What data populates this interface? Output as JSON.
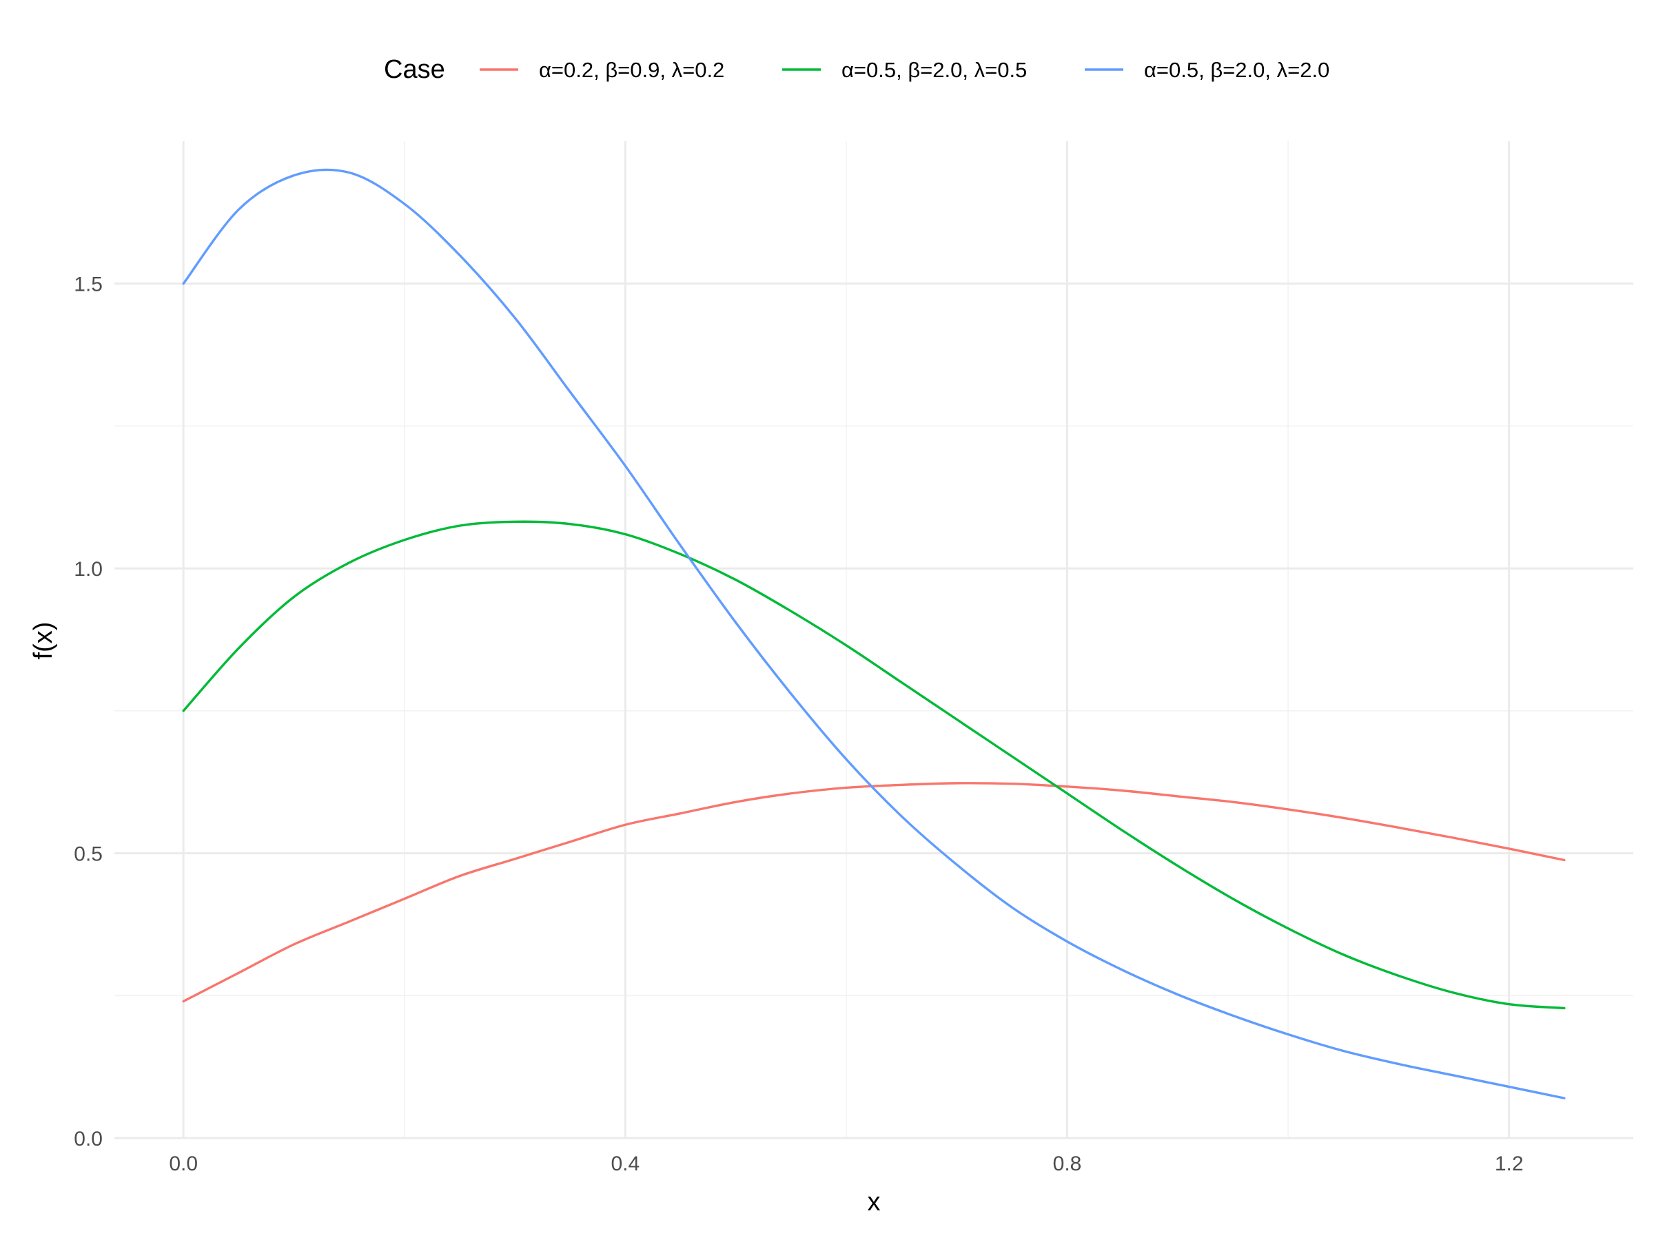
{
  "chart_data": {
    "type": "line",
    "title": "",
    "xlabel": "x",
    "ylabel": "f(x)",
    "xlim": [
      -0.0625,
      1.3125
    ],
    "ylim": [
      0.0,
      1.75
    ],
    "x_ticks": [
      0.0,
      0.4,
      0.8,
      1.2
    ],
    "x_tick_labels": [
      "0.0",
      "0.4",
      "0.8",
      "1.2"
    ],
    "x_minor_ticks": [
      0.2,
      0.6,
      1.0
    ],
    "y_ticks": [
      0.0,
      0.5,
      1.0,
      1.5
    ],
    "y_tick_labels": [
      "0.0",
      "0.5",
      "1.0",
      "1.5"
    ],
    "y_minor_ticks": [
      0.25,
      0.75,
      1.25
    ],
    "grid": true,
    "legend": {
      "title": "Case",
      "position": "top"
    },
    "x": [
      0.0,
      0.05,
      0.1,
      0.15,
      0.2,
      0.25,
      0.3,
      0.35,
      0.4,
      0.45,
      0.5,
      0.55,
      0.6,
      0.65,
      0.7,
      0.75,
      0.8,
      0.85,
      0.9,
      0.95,
      1.0,
      1.05,
      1.1,
      1.15,
      1.2,
      1.25
    ],
    "series": [
      {
        "name": "α=0.2, β=0.9, λ=0.2",
        "color": "#F8766D",
        "values": [
          0.24,
          0.29,
          0.34,
          0.38,
          0.42,
          0.46,
          0.49,
          0.52,
          0.55,
          0.57,
          0.59,
          0.605,
          0.615,
          0.62,
          0.623,
          0.622,
          0.617,
          0.61,
          0.6,
          0.59,
          0.577,
          0.562,
          0.545,
          0.527,
          0.508,
          0.488
        ]
      },
      {
        "name": "α=0.5, β=2.0, λ=0.5",
        "color": "#00BA38",
        "values": [
          0.75,
          0.86,
          0.95,
          1.01,
          1.05,
          1.075,
          1.082,
          1.078,
          1.06,
          1.025,
          0.98,
          0.925,
          0.865,
          0.8,
          0.735,
          0.67,
          0.605,
          0.54,
          0.478,
          0.42,
          0.368,
          0.322,
          0.285,
          0.255,
          0.235,
          0.228
        ]
      },
      {
        "name": "α=0.5, β=2.0, λ=2.0",
        "color": "#619CFF",
        "values": [
          1.5,
          1.63,
          1.69,
          1.695,
          1.64,
          1.55,
          1.44,
          1.31,
          1.18,
          1.04,
          0.905,
          0.78,
          0.665,
          0.565,
          0.48,
          0.405,
          0.345,
          0.295,
          0.252,
          0.215,
          0.182,
          0.153,
          0.13,
          0.11,
          0.09,
          0.07
        ]
      }
    ]
  }
}
